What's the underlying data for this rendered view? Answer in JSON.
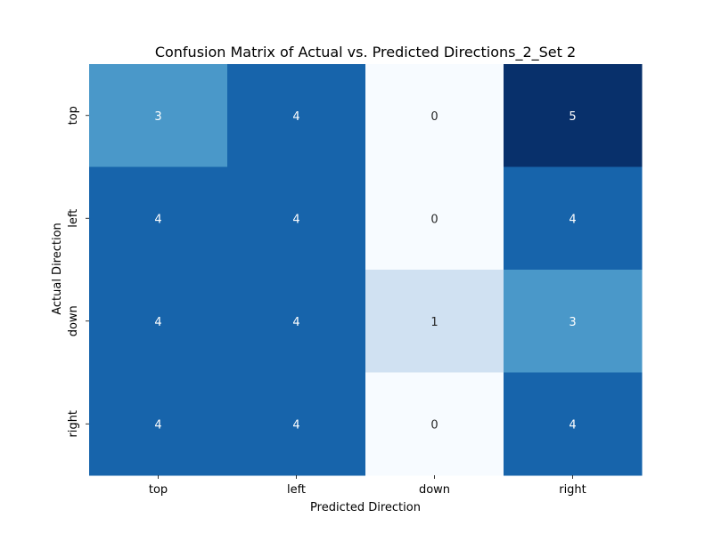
{
  "chart_data": {
    "type": "heatmap",
    "title": "Confusion Matrix of Actual vs. Predicted Directions_2_Set 2",
    "xlabel": "Predicted Direction",
    "ylabel": "Actual Direction",
    "x_categories": [
      "top",
      "left",
      "down",
      "right"
    ],
    "y_categories": [
      "top",
      "left",
      "down",
      "right"
    ],
    "values": [
      [
        3,
        4,
        0,
        5
      ],
      [
        4,
        4,
        0,
        4
      ],
      [
        4,
        4,
        1,
        3
      ],
      [
        4,
        4,
        0,
        4
      ]
    ],
    "colormap": "Blues",
    "colorbar": false,
    "value_range": [
      0,
      5
    ]
  }
}
